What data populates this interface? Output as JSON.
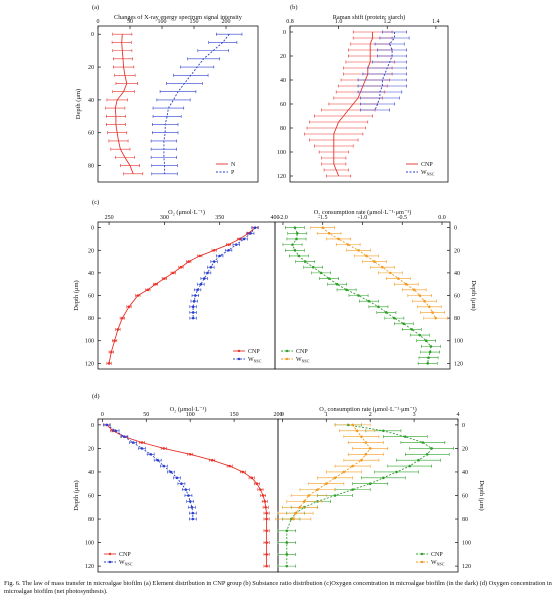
{
  "colors": {
    "red": "#e8322a",
    "blue": "#2b3fcc",
    "green": "#2ea02a",
    "orange": "#f39a1e",
    "axis": "#111111"
  },
  "caption": "Fig. 6. The law of mass transfer in microalgae biofilm (a) Element distribution in CNP group (b) Substance ratio distribution (c)Oxygen concentration in microalgae biofilm (in the dark) (d) Oxygen concentration in microalgae biofilm (net photosynthesis).",
  "chart_data": [
    {
      "id": "a",
      "panel_label": "(a)",
      "type": "line",
      "title": "Changes of X-ray energy spectrum signal intensity",
      "ylabel": "Depth (μm)",
      "xlim": [
        0,
        250
      ],
      "ylim": [
        -5,
        90
      ],
      "y_inverted": true,
      "xticks": [
        0,
        50,
        100,
        150,
        200
      ],
      "xtick_labels": [
        "0",
        "50",
        "100",
        "150",
        "200"
      ],
      "yticks": [
        0,
        20,
        40,
        60,
        80
      ],
      "ytick_labels": [
        "0",
        "20",
        "40",
        "60",
        "80"
      ],
      "legend_position": "bottom-right",
      "series": [
        {
          "name": "N",
          "color": "red",
          "dash": false,
          "marker": "none",
          "y": [
            0,
            5,
            10,
            15,
            20,
            25,
            30,
            35,
            40,
            45,
            50,
            55,
            60,
            65,
            70,
            75,
            80,
            85
          ],
          "x": [
            38,
            37,
            38,
            39,
            40,
            42,
            45,
            40,
            30,
            27,
            28,
            28,
            30,
            32,
            35,
            42,
            50,
            55
          ],
          "err": [
            15,
            15,
            15,
            15,
            16,
            16,
            17,
            17,
            16,
            15,
            15,
            15,
            15,
            15,
            15,
            15,
            15,
            15
          ]
        },
        {
          "name": "P",
          "color": "blue",
          "dash": true,
          "marker": "none",
          "y": [
            0,
            5,
            10,
            15,
            20,
            25,
            30,
            35,
            40,
            45,
            50,
            55,
            60,
            65,
            70,
            75,
            80,
            85
          ],
          "x": [
            205,
            195,
            180,
            165,
            155,
            145,
            135,
            125,
            118,
            110,
            108,
            105,
            105,
            103,
            103,
            103,
            104,
            104
          ],
          "err": [
            20,
            22,
            24,
            25,
            26,
            27,
            28,
            28,
            26,
            24,
            22,
            20,
            20,
            20,
            20,
            20,
            20,
            20
          ]
        }
      ]
    },
    {
      "id": "b",
      "panel_label": "(b)",
      "type": "line",
      "title": "Raman shift (protein: starch)",
      "xlim": [
        0.8,
        1.45
      ],
      "ylim": [
        -5,
        125
      ],
      "y_inverted": true,
      "xticks": [
        0.8,
        1.0,
        1.2,
        1.4
      ],
      "xtick_labels": [
        "0.8",
        "1.0",
        "1.2",
        "1.4"
      ],
      "yticks": [
        0,
        20,
        40,
        60,
        80,
        100,
        120
      ],
      "ytick_labels": [
        "0",
        "20",
        "40",
        "60",
        "80",
        "100",
        "120"
      ],
      "legend_position": "bottom-right",
      "series": [
        {
          "name": "CNP",
          "color": "red",
          "dash": false,
          "marker": "none",
          "y": [
            0,
            5,
            10,
            15,
            20,
            25,
            30,
            35,
            40,
            45,
            50,
            55,
            60,
            65,
            70,
            75,
            80,
            85,
            90,
            95,
            100,
            105,
            110,
            115,
            120
          ],
          "x": [
            1.14,
            1.14,
            1.13,
            1.13,
            1.13,
            1.13,
            1.12,
            1.12,
            1.11,
            1.1,
            1.09,
            1.08,
            1.06,
            1.04,
            1.02,
            1.0,
            0.99,
            0.98,
            0.98,
            0.98,
            0.98,
            0.98,
            0.98,
            0.99,
            1.0
          ],
          "err": [
            0.08,
            0.08,
            0.08,
            0.09,
            0.09,
            0.1,
            0.1,
            0.1,
            0.1,
            0.1,
            0.1,
            0.1,
            0.1,
            0.11,
            0.12,
            0.12,
            0.12,
            0.12,
            0.1,
            0.08,
            0.06,
            0.05,
            0.05,
            0.05,
            0.05
          ]
        },
        {
          "name": "W_NSC",
          "color": "blue",
          "dash": true,
          "marker": "none",
          "y": [
            0,
            5,
            10,
            15,
            20,
            25,
            30,
            35,
            40,
            45,
            50,
            55,
            60,
            65
          ],
          "x": [
            1.23,
            1.23,
            1.21,
            1.22,
            1.22,
            1.21,
            1.2,
            1.19,
            1.18,
            1.18,
            1.17,
            1.17,
            1.16,
            1.15
          ],
          "err": [
            0.05,
            0.06,
            0.06,
            0.06,
            0.06,
            0.07,
            0.08,
            0.09,
            0.1,
            0.1,
            0.09,
            0.08,
            0.07,
            0.06
          ]
        }
      ]
    },
    {
      "id": "c-left",
      "panel_label": "(c)",
      "type": "line",
      "title": "O₂ (μmol·L⁻¹)",
      "ylabel": "Depth (μm)",
      "xlim": [
        240,
        400
      ],
      "ylim": [
        -5,
        125
      ],
      "y_inverted": true,
      "xticks": [
        250,
        300,
        350,
        400
      ],
      "xtick_labels": [
        "250",
        "300",
        "350",
        "400"
      ],
      "yticks": [
        0,
        20,
        40,
        60,
        80,
        100,
        120
      ],
      "ytick_labels": [
        "0",
        "20",
        "40",
        "60",
        "80",
        "100",
        "120"
      ],
      "legend_position": "bottom-right",
      "series": [
        {
          "name": "CNP",
          "color": "red",
          "dash": false,
          "marker": "circle",
          "y": [
            0,
            5,
            10,
            15,
            20,
            25,
            30,
            35,
            40,
            45,
            50,
            55,
            60,
            70,
            80,
            90,
            100,
            110,
            120
          ],
          "x": [
            382,
            376,
            368,
            358,
            345,
            332,
            322,
            315,
            308,
            300,
            292,
            285,
            276,
            268,
            262,
            258,
            255,
            252,
            250
          ],
          "err": [
            2,
            2,
            2,
            2,
            2,
            2,
            2,
            2,
            2,
            2,
            2,
            2,
            2,
            2,
            2,
            2,
            2,
            2,
            2
          ]
        },
        {
          "name": "W_NSC",
          "color": "blue",
          "dash": true,
          "marker": "circle",
          "y": [
            0,
            5,
            10,
            15,
            20,
            25,
            30,
            35,
            40,
            45,
            50,
            55,
            60,
            65,
            70,
            75,
            80
          ],
          "x": [
            382,
            378,
            372,
            365,
            358,
            350,
            345,
            342,
            339,
            336,
            333,
            330,
            328,
            327,
            326,
            326,
            326
          ],
          "err": [
            3,
            3,
            3,
            3,
            3,
            3,
            3,
            3,
            3,
            3,
            3,
            3,
            3,
            3,
            3,
            3,
            3
          ]
        }
      ]
    },
    {
      "id": "c-right",
      "type": "line",
      "title": "O₂ consumption rate (μmol·L⁻¹·μm⁻¹)",
      "ylabel": "Depth (μm)",
      "xlim": [
        -2.1,
        0.1
      ],
      "ylim": [
        -5,
        125
      ],
      "y_inverted": true,
      "xticks": [
        -2.0,
        -1.5,
        -1.0,
        -0.5,
        0.0
      ],
      "xtick_labels": [
        "-2.0",
        "-1.5",
        "-1.0",
        "-0.5",
        "0.0"
      ],
      "yticks": [
        0,
        20,
        40,
        60,
        80,
        100,
        120
      ],
      "ytick_labels": [
        "0",
        "20",
        "40",
        "60",
        "80",
        "100",
        "120"
      ],
      "legend_position": "bottom-left",
      "series": [
        {
          "name": "CNP",
          "color": "green",
          "dash": true,
          "marker": "circle",
          "y": [
            0,
            5,
            10,
            15,
            20,
            25,
            30,
            35,
            40,
            45,
            50,
            55,
            60,
            65,
            70,
            75,
            80,
            85,
            90,
            95,
            100,
            105,
            110,
            115,
            120
          ],
          "x": [
            -1.85,
            -1.82,
            -1.83,
            -1.88,
            -1.85,
            -1.8,
            -1.72,
            -1.62,
            -1.52,
            -1.42,
            -1.32,
            -1.2,
            -1.05,
            -0.92,
            -0.8,
            -0.7,
            -0.6,
            -0.48,
            -0.38,
            -0.28,
            -0.2,
            -0.14,
            -0.15,
            -0.17,
            -0.18
          ],
          "err": [
            0.12,
            0.12,
            0.12,
            0.12,
            0.12,
            0.12,
            0.12,
            0.12,
            0.12,
            0.12,
            0.12,
            0.12,
            0.12,
            0.12,
            0.12,
            0.12,
            0.12,
            0.12,
            0.12,
            0.12,
            0.12,
            0.12,
            0.12,
            0.12,
            0.12
          ]
        },
        {
          "name": "W_NSC",
          "color": "orange",
          "dash": true,
          "marker": "circle",
          "y": [
            0,
            5,
            10,
            15,
            20,
            25,
            30,
            35,
            40,
            45,
            50,
            55,
            60,
            65,
            70,
            75,
            80
          ],
          "x": [
            -1.5,
            -1.42,
            -1.3,
            -1.18,
            -1.05,
            -0.95,
            -0.85,
            -0.75,
            -0.65,
            -0.55,
            -0.45,
            -0.35,
            -0.28,
            -0.22,
            -0.16,
            -0.12,
            -0.08
          ],
          "err": [
            0.15,
            0.15,
            0.15,
            0.15,
            0.15,
            0.15,
            0.15,
            0.15,
            0.15,
            0.15,
            0.15,
            0.15,
            0.15,
            0.15,
            0.15,
            0.15,
            0.15
          ]
        }
      ]
    },
    {
      "id": "d-left",
      "panel_label": "(d)",
      "type": "line",
      "title": "O₂ (μmol·L⁻¹)",
      "ylabel": "Depth (μm)",
      "xlim": [
        -5,
        200
      ],
      "ylim": [
        -5,
        125
      ],
      "y_inverted": true,
      "xticks": [
        0,
        50,
        100,
        150,
        200
      ],
      "xtick_labels": [
        "0",
        "50",
        "100",
        "150",
        "200"
      ],
      "yticks": [
        0,
        20,
        40,
        60,
        80,
        100,
        120
      ],
      "ytick_labels": [
        "0",
        "20",
        "40",
        "60",
        "80",
        "100",
        "120"
      ],
      "legend_position": "bottom-left",
      "series": [
        {
          "name": "CNP",
          "color": "red",
          "dash": false,
          "marker": "circle",
          "y": [
            0,
            5,
            10,
            15,
            20,
            25,
            30,
            35,
            40,
            45,
            50,
            55,
            60,
            65,
            70,
            75,
            80,
            90,
            100,
            110,
            120
          ],
          "x": [
            5,
            12,
            25,
            45,
            70,
            100,
            125,
            145,
            160,
            170,
            176,
            180,
            183,
            185,
            186,
            187,
            187,
            187,
            187,
            187,
            187
          ],
          "err": [
            3,
            3,
            3,
            3,
            3,
            3,
            3,
            3,
            3,
            3,
            3,
            3,
            3,
            3,
            3,
            3,
            3,
            3,
            3,
            3,
            3
          ]
        },
        {
          "name": "W_NSC",
          "color": "blue",
          "dash": true,
          "marker": "circle",
          "y": [
            0,
            5,
            10,
            15,
            20,
            25,
            30,
            35,
            40,
            45,
            50,
            55,
            60,
            65,
            70,
            75,
            80
          ],
          "x": [
            5,
            15,
            25,
            35,
            45,
            55,
            63,
            70,
            78,
            85,
            90,
            95,
            98,
            100,
            102,
            103,
            103
          ],
          "err": [
            4,
            4,
            4,
            4,
            4,
            4,
            4,
            4,
            4,
            4,
            4,
            4,
            4,
            4,
            4,
            4,
            4
          ]
        }
      ]
    },
    {
      "id": "d-right",
      "type": "line",
      "title": "O₂ consumption rate (μmol·L⁻¹·μm⁻¹)",
      "ylabel": "Depth (μm)",
      "xlim": [
        -0.1,
        4
      ],
      "ylim": [
        -5,
        125
      ],
      "y_inverted": true,
      "xticks": [
        0,
        1,
        2,
        3,
        4
      ],
      "xtick_labels": [
        "0",
        "1",
        "2",
        "3",
        "4"
      ],
      "yticks": [
        0,
        20,
        40,
        60,
        80,
        100,
        120
      ],
      "ytick_labels": [
        "0",
        "20",
        "40",
        "60",
        "80",
        "100",
        "120"
      ],
      "legend_position": "bottom-right",
      "series": [
        {
          "name": "CNP",
          "color": "green",
          "dash": true,
          "marker": "circle",
          "y": [
            0,
            5,
            10,
            15,
            20,
            25,
            30,
            35,
            40,
            45,
            50,
            55,
            60,
            65,
            70,
            75,
            80,
            90,
            100,
            110,
            120
          ],
          "x": [
            1.5,
            2.3,
            2.8,
            3.2,
            3.4,
            3.3,
            3.1,
            2.9,
            2.6,
            2.3,
            2.0,
            1.6,
            1.2,
            0.8,
            0.5,
            0.3,
            0.2,
            0.1,
            0.1,
            0.1,
            0.1
          ],
          "err": [
            0.3,
            0.4,
            0.5,
            0.5,
            0.5,
            0.5,
            0.5,
            0.5,
            0.5,
            0.5,
            0.4,
            0.4,
            0.4,
            0.3,
            0.3,
            0.2,
            0.2,
            0.2,
            0.2,
            0.2,
            0.2
          ]
        },
        {
          "name": "W_NSC",
          "color": "orange",
          "dash": true,
          "marker": "circle",
          "y": [
            0,
            5,
            10,
            15,
            20,
            25,
            30,
            35,
            40,
            45,
            50,
            55,
            60,
            65,
            70,
            75,
            80
          ],
          "x": [
            1.6,
            1.7,
            1.8,
            1.9,
            2.0,
            1.9,
            1.8,
            1.6,
            1.4,
            1.2,
            1.0,
            0.8,
            0.6,
            0.5,
            0.4,
            0.3,
            0.25
          ],
          "err": [
            0.4,
            0.4,
            0.4,
            0.4,
            0.4,
            0.4,
            0.4,
            0.4,
            0.4,
            0.4,
            0.4,
            0.4,
            0.4,
            0.4,
            0.4,
            0.4,
            0.4
          ]
        }
      ]
    }
  ]
}
